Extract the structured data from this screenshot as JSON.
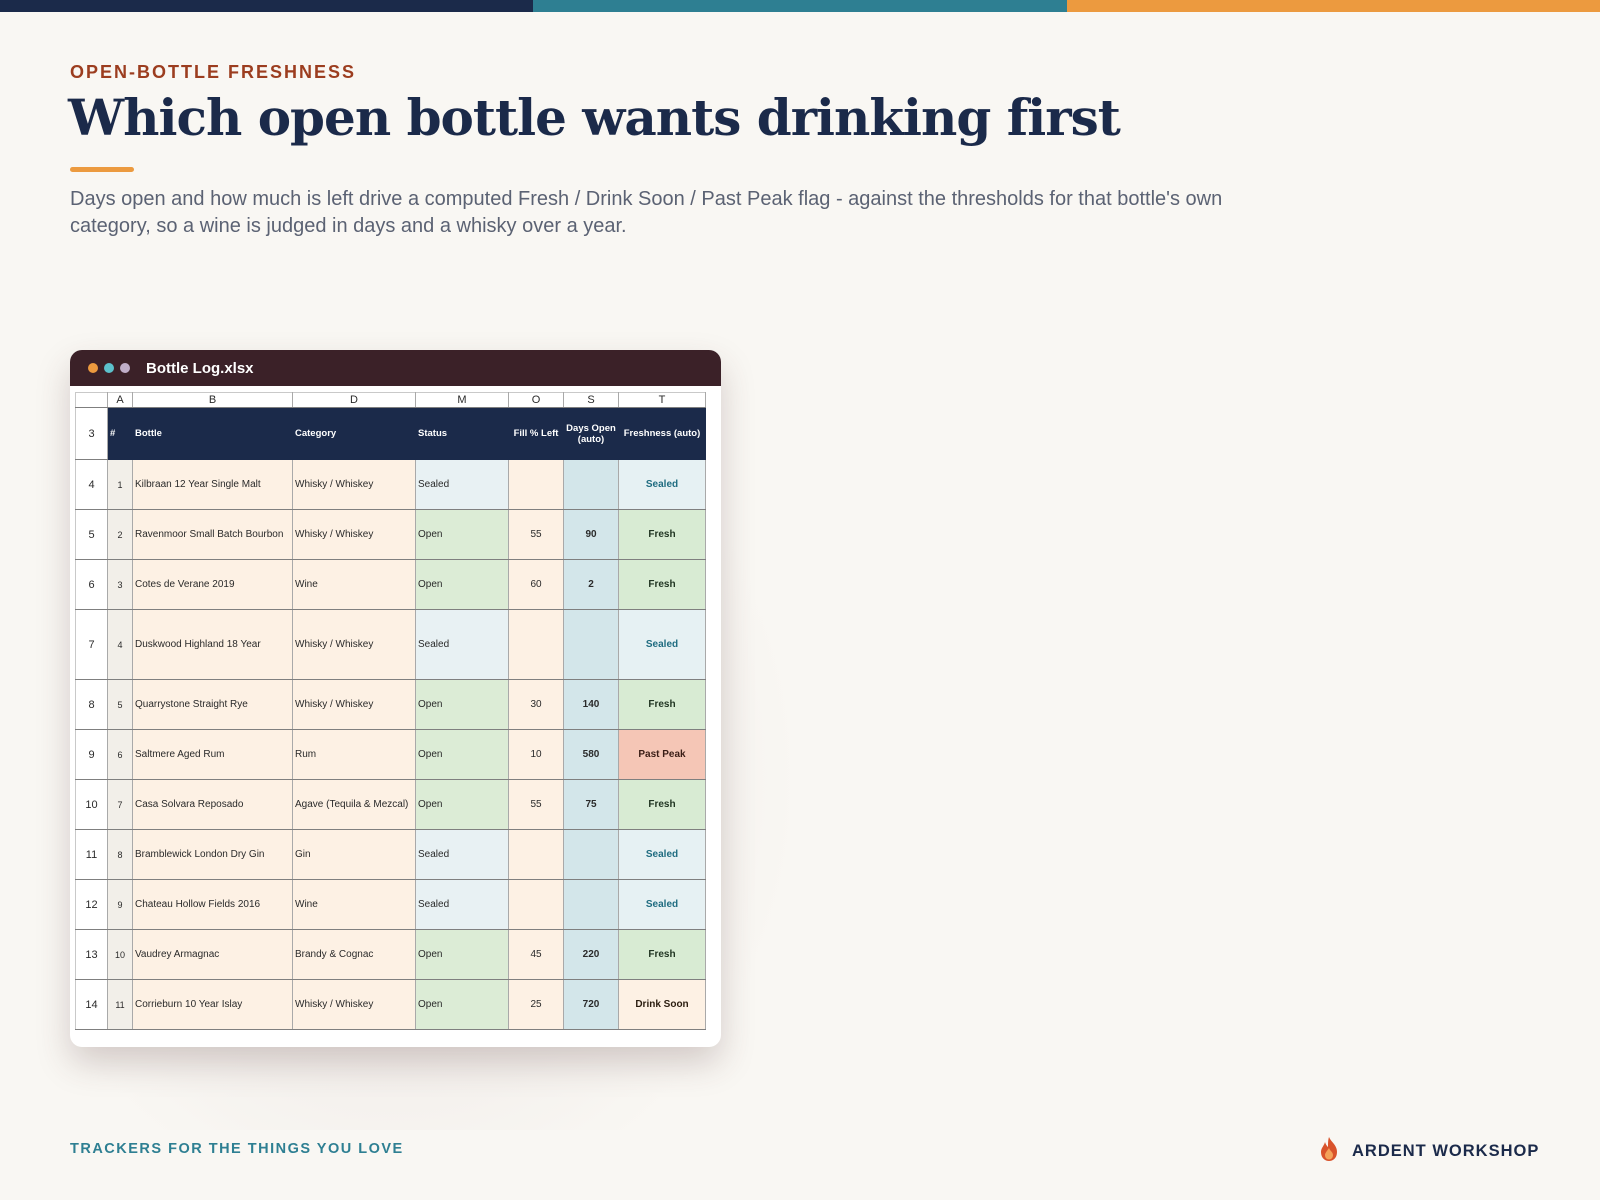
{
  "colors": {
    "navy": "#1b2a4a",
    "teal": "#2e7f92",
    "orange": "#ec9a3f",
    "rust": "#9c3d1f",
    "window_bar": "#3b2128",
    "fresh_bg": "#d8ebd3",
    "sealed_bg": "#e6f1f3",
    "past_peak_bg": "#f5c6b6",
    "drink_soon_bg": "#fdf1e4"
  },
  "topbar": [
    "#1b2a4a",
    "#2e7f92",
    "#ec9a3f"
  ],
  "header": {
    "eyebrow": "OPEN-BOTTLE FRESHNESS",
    "title": "Which open bottle wants drinking first",
    "subtitle": "Days open and how much is left drive a computed Fresh / Drink Soon / Past Peak flag - against the thresholds for that bottle's own category, so a wine is judged in days and a whisky over a year."
  },
  "window": {
    "title": "Bottle Log.xlsx",
    "dots": [
      "#ec9a3f",
      "#5cc1cc",
      "#c0aec8"
    ]
  },
  "sheet": {
    "column_letters": [
      "A",
      "B",
      "D",
      "M",
      "O",
      "S",
      "T"
    ],
    "header_row_number": "3",
    "headers": [
      "#",
      "Bottle",
      "Category",
      "Status",
      "Fill % Left",
      "Days Open (auto)",
      "Freshness (auto)"
    ],
    "rows": [
      {
        "row": "4",
        "num": "1",
        "bottle": "Kilbraan 12 Year Single Malt",
        "category": "Whisky / Whiskey",
        "status": "Sealed",
        "fill": "",
        "days": "",
        "freshness": "Sealed"
      },
      {
        "row": "5",
        "num": "2",
        "bottle": "Ravenmoor Small Batch Bourbon",
        "category": "Whisky / Whiskey",
        "status": "Open",
        "fill": "55",
        "days": "90",
        "freshness": "Fresh"
      },
      {
        "row": "6",
        "num": "3",
        "bottle": "Cotes de Verane 2019",
        "category": "Wine",
        "status": "Open",
        "fill": "60",
        "days": "2",
        "freshness": "Fresh"
      },
      {
        "row": "7",
        "num": "4",
        "bottle": "Duskwood Highland 18 Year",
        "category": "Whisky / Whiskey",
        "status": "Sealed",
        "fill": "",
        "days": "",
        "freshness": "Sealed"
      },
      {
        "row": "8",
        "num": "5",
        "bottle": "Quarrystone Straight Rye",
        "category": "Whisky / Whiskey",
        "status": "Open",
        "fill": "30",
        "days": "140",
        "freshness": "Fresh"
      },
      {
        "row": "9",
        "num": "6",
        "bottle": "Saltmere Aged Rum",
        "category": "Rum",
        "status": "Open",
        "fill": "10",
        "days": "580",
        "freshness": "Past Peak"
      },
      {
        "row": "10",
        "num": "7",
        "bottle": "Casa Solvara Reposado",
        "category": "Agave (Tequila & Mezcal)",
        "status": "Open",
        "fill": "55",
        "days": "75",
        "freshness": "Fresh"
      },
      {
        "row": "11",
        "num": "8",
        "bottle": "Bramblewick London Dry Gin",
        "category": "Gin",
        "status": "Sealed",
        "fill": "",
        "days": "",
        "freshness": "Sealed"
      },
      {
        "row": "12",
        "num": "9",
        "bottle": "Chateau Hollow Fields 2016",
        "category": "Wine",
        "status": "Sealed",
        "fill": "",
        "days": "",
        "freshness": "Sealed"
      },
      {
        "row": "13",
        "num": "10",
        "bottle": "Vaudrey Armagnac",
        "category": "Brandy & Cognac",
        "status": "Open",
        "fill": "45",
        "days": "220",
        "freshness": "Fresh"
      },
      {
        "row": "14",
        "num": "11",
        "bottle": "Corrieburn 10 Year Islay",
        "category": "Whisky / Whiskey",
        "status": "Open",
        "fill": "25",
        "days": "720",
        "freshness": "Drink Soon"
      }
    ]
  },
  "footer": {
    "tagline": "TRACKERS FOR THE THINGS YOU LOVE",
    "brand": "ARDENT WORKSHOP",
    "brand_icon": "flame-icon"
  }
}
